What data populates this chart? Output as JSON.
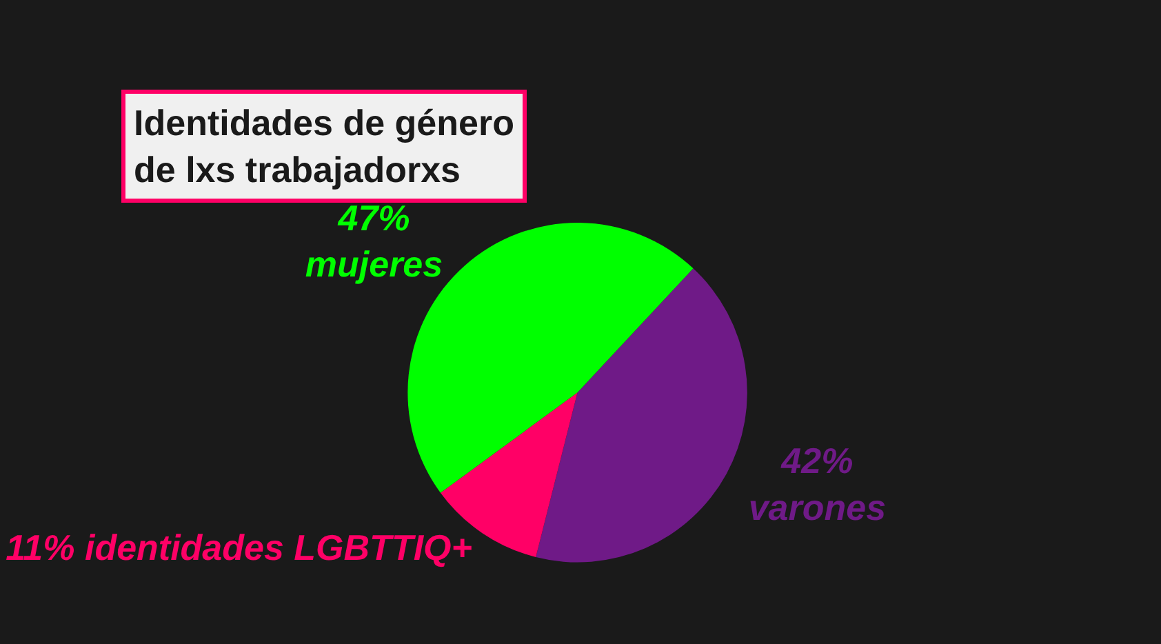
{
  "chart_data": {
    "type": "pie",
    "title": "Identidades de género\nde lxs trabajadorxs",
    "categories": [
      "varones",
      "identidades LGBTTIQ+",
      "mujeres"
    ],
    "values": [
      42,
      11,
      47
    ],
    "value_labels": [
      "42%",
      "11%",
      "47%"
    ],
    "colors": [
      "#6f1a87",
      "#ff0066",
      "#00ff00"
    ],
    "legend": false
  }
}
